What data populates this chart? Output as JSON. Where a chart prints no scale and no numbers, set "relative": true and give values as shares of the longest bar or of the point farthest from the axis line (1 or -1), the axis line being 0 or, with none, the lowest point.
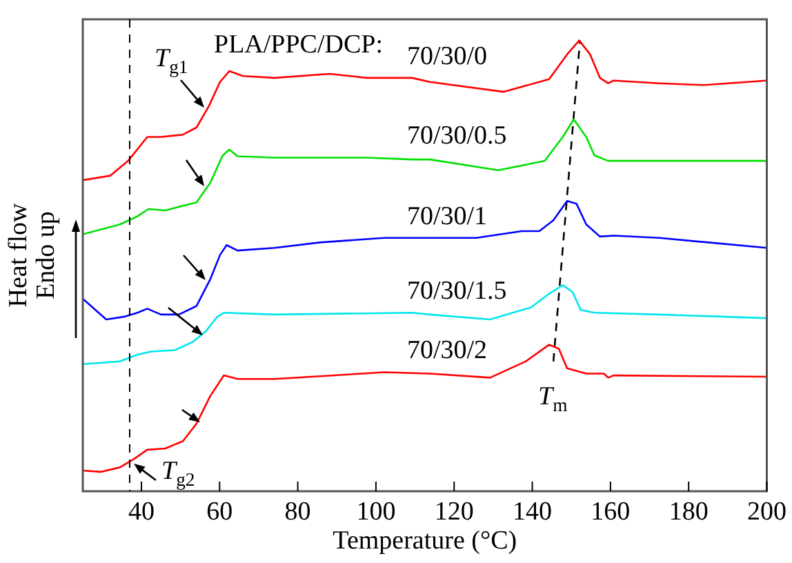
{
  "chart_data": {
    "type": "line",
    "relative": true,
    "xlabel": "Temperature (°C)",
    "ylabel": "Heat flow\nEndo up",
    "xlim": [
      25,
      200
    ],
    "xticks": [
      40,
      60,
      80,
      100,
      120,
      140,
      160,
      180,
      200
    ],
    "grid": false,
    "legend": false,
    "marker": "none",
    "tick_labels": "x",
    "annotations": [
      "PLA/PPC/DCP:",
      "T$_{g1}$",
      "T$_{g2}$",
      "T$_{m}$"
    ],
    "ref_lines": [
      {
        "axis": "x",
        "value": 37,
        "color": "#000000",
        "line_style": "dashed"
      }
    ],
    "series": [
      {
        "name": "70/30/0",
        "color": "#ff0000",
        "x": [
          25,
          32.0,
          36.6,
          41.5,
          45,
          50.6,
          54.1,
          57.3,
          60.1,
          62.5,
          66,
          74.1,
          88.2,
          97.6,
          109.2,
          113.8,
          132.7,
          144.3,
          148.9,
          152,
          154.8,
          157.3,
          159.4,
          160.8,
          172.4,
          183.9,
          200
        ],
        "values": [
          0.69,
          0.7,
          0.733,
          0.786,
          0.786,
          0.791,
          0.807,
          0.855,
          0.908,
          0.932,
          0.921,
          0.917,
          0.926,
          0.917,
          0.917,
          0.908,
          0.886,
          0.914,
          0.969,
          1,
          0.969,
          0.917,
          0.905,
          0.911,
          0.905,
          0.901,
          0.911
        ]
      },
      {
        "name": "70/30/0.5",
        "color": "#00e000",
        "x": [
          25,
          34.5,
          39.0,
          41.8,
          46.1,
          54.1,
          57.6,
          60.8,
          62.5,
          64.6,
          74.1,
          97.6,
          109.2,
          113.8,
          131.3,
          143.2,
          147.8,
          150.6,
          153.8,
          155.9,
          159.4,
          172.4,
          200
        ],
        "values": [
          0.57,
          0.592,
          0.61,
          0.626,
          0.623,
          0.641,
          0.684,
          0.745,
          0.758,
          0.743,
          0.74,
          0.74,
          0.736,
          0.736,
          0.712,
          0.733,
          0.786,
          0.825,
          0.786,
          0.745,
          0.733,
          0.733,
          0.733
        ]
      },
      {
        "name": "70/30/1",
        "color": "#0000ff",
        "x": [
          25,
          31.0,
          35.5,
          39.0,
          41.5,
          45,
          49.6,
          54.1,
          57.6,
          60.1,
          61.8,
          64.6,
          74.1,
          85.7,
          102.2,
          113.8,
          125.7,
          137.3,
          141.8,
          145.4,
          148.9,
          151.3,
          153.8,
          157.3,
          160.8,
          172.4,
          200
        ],
        "values": [
          0.427,
          0.381,
          0.387,
          0.396,
          0.405,
          0.392,
          0.392,
          0.411,
          0.47,
          0.524,
          0.546,
          0.534,
          0.54,
          0.552,
          0.562,
          0.562,
          0.562,
          0.577,
          0.577,
          0.601,
          0.644,
          0.638,
          0.592,
          0.565,
          0.567,
          0.562,
          0.54
        ]
      },
      {
        "name": "70/30/1.5",
        "color": "#00e5ee",
        "x": [
          25,
          34.5,
          39.0,
          42.5,
          48.5,
          53.1,
          56.6,
          59.4,
          61.1,
          74.1,
          109.2,
          113.8,
          129.2,
          139.7,
          144.3,
          147.8,
          150.3,
          152.4,
          155.9,
          172.4,
          200
        ],
        "values": [
          0.282,
          0.288,
          0.303,
          0.31,
          0.313,
          0.331,
          0.356,
          0.387,
          0.396,
          0.392,
          0.396,
          0.392,
          0.381,
          0.408,
          0.438,
          0.457,
          0.442,
          0.402,
          0.396,
          0.392,
          0.384
        ]
      },
      {
        "name": "70/30/2",
        "color": "#ff0000",
        "x": [
          25,
          29.6,
          34.5,
          38.0,
          41.5,
          46.1,
          50.6,
          54.1,
          57.6,
          61.1,
          64.6,
          74.1,
          102.2,
          113.8,
          129.2,
          138.3,
          144.3,
          146.8,
          148.9,
          153.8,
          158.3,
          159.4,
          160.8,
          200
        ],
        "values": [
          0.046,
          0.043,
          0.053,
          0.071,
          0.092,
          0.095,
          0.111,
          0.15,
          0.211,
          0.257,
          0.249,
          0.249,
          0.264,
          0.261,
          0.252,
          0.288,
          0.325,
          0.316,
          0.273,
          0.261,
          0.261,
          0.252,
          0.257,
          0.254
        ]
      },
      {
        "color": "#000000",
        "line_style": "dashed",
        "x": [
          145.4,
          152.2
        ],
        "values": [
          0.288,
          1
        ]
      }
    ]
  }
}
